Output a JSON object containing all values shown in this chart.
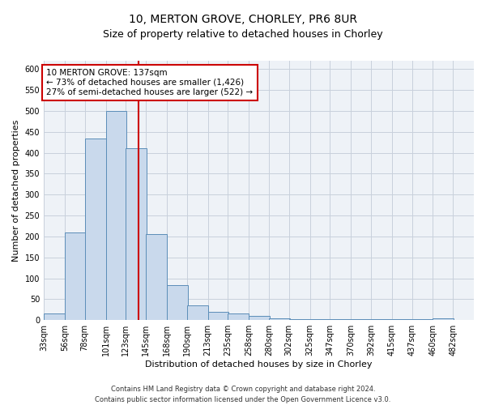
{
  "title_line1": "10, MERTON GROVE, CHORLEY, PR6 8UR",
  "title_line2": "Size of property relative to detached houses in Chorley",
  "xlabel": "Distribution of detached houses by size in Chorley",
  "ylabel": "Number of detached properties",
  "footnote": "Contains HM Land Registry data © Crown copyright and database right 2024.\nContains public sector information licensed under the Open Government Licence v3.0.",
  "bin_labels": [
    "33sqm",
    "56sqm",
    "78sqm",
    "101sqm",
    "123sqm",
    "145sqm",
    "168sqm",
    "190sqm",
    "213sqm",
    "235sqm",
    "258sqm",
    "280sqm",
    "302sqm",
    "325sqm",
    "347sqm",
    "370sqm",
    "392sqm",
    "415sqm",
    "437sqm",
    "460sqm",
    "482sqm"
  ],
  "bin_edges": [
    33,
    56,
    78,
    101,
    123,
    145,
    168,
    190,
    213,
    235,
    258,
    280,
    302,
    325,
    347,
    370,
    392,
    415,
    437,
    460,
    482
  ],
  "bar_heights": [
    15,
    210,
    435,
    500,
    410,
    205,
    83,
    35,
    20,
    16,
    10,
    5,
    3,
    3,
    3,
    3,
    3,
    3,
    3,
    5
  ],
  "bar_color": "#c9d9ec",
  "bar_edgecolor": "#5b8db8",
  "vline_x": 137,
  "vline_color": "#cc0000",
  "annotation_text": "10 MERTON GROVE: 137sqm\n← 73% of detached houses are smaller (1,426)\n27% of semi-detached houses are larger (522) →",
  "annotation_box_color": "#ffffff",
  "annotation_box_edgecolor": "#cc0000",
  "ylim": [
    0,
    620
  ],
  "yticks": [
    0,
    50,
    100,
    150,
    200,
    250,
    300,
    350,
    400,
    450,
    500,
    550,
    600
  ],
  "grid_color": "#c8d0dc",
  "background_color": "#eef2f7",
  "title1_fontsize": 10,
  "title2_fontsize": 9,
  "xlabel_fontsize": 8,
  "ylabel_fontsize": 8,
  "tick_fontsize": 7,
  "footnote_fontsize": 6
}
